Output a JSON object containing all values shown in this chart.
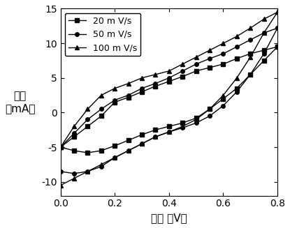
{
  "xlabel": "电压 （V）",
  "ylabel": "电流\n（mA）",
  "xlim": [
    0.0,
    0.8
  ],
  "ylim": [
    -12,
    15
  ],
  "xticks": [
    0.0,
    0.2,
    0.4,
    0.6,
    0.8
  ],
  "yticks": [
    -10,
    -5,
    0,
    5,
    10,
    15
  ],
  "background_color": "#ffffff",
  "legend_labels": [
    "20 m V/s",
    "50 m V/s",
    "100 m V/s"
  ],
  "scan_20_upper_x": [
    0.0,
    0.05,
    0.1,
    0.15,
    0.2,
    0.25,
    0.3,
    0.35,
    0.4,
    0.45,
    0.5,
    0.55,
    0.6,
    0.65,
    0.7,
    0.75,
    0.8
  ],
  "scan_20_upper_y": [
    -5.0,
    -3.5,
    -2.0,
    -0.5,
    1.5,
    2.2,
    3.0,
    3.8,
    4.5,
    5.2,
    6.0,
    6.5,
    7.0,
    7.8,
    8.5,
    9.0,
    9.5
  ],
  "scan_20_lower_x": [
    0.0,
    0.05,
    0.1,
    0.15,
    0.2,
    0.25,
    0.3,
    0.35,
    0.4,
    0.45,
    0.5,
    0.55,
    0.6,
    0.65,
    0.7,
    0.75,
    0.8
  ],
  "scan_20_lower_y": [
    -5.0,
    -5.5,
    -5.8,
    -5.5,
    -4.8,
    -4.0,
    -3.2,
    -2.5,
    -2.0,
    -1.5,
    -0.8,
    0.5,
    2.0,
    3.5,
    5.5,
    7.5,
    9.5
  ],
  "scan_50_upper_x": [
    0.0,
    0.05,
    0.1,
    0.15,
    0.2,
    0.25,
    0.3,
    0.35,
    0.4,
    0.45,
    0.5,
    0.55,
    0.6,
    0.65,
    0.7,
    0.75,
    0.8
  ],
  "scan_50_upper_y": [
    -5.0,
    -3.0,
    -1.0,
    0.5,
    1.8,
    2.5,
    3.5,
    4.2,
    5.0,
    6.0,
    7.0,
    7.8,
    8.5,
    9.5,
    10.5,
    11.5,
    12.2
  ],
  "scan_50_lower_x": [
    0.0,
    0.05,
    0.1,
    0.15,
    0.2,
    0.25,
    0.3,
    0.35,
    0.4,
    0.45,
    0.5,
    0.55,
    0.6,
    0.65,
    0.7,
    0.75,
    0.8
  ],
  "scan_50_lower_y": [
    -8.5,
    -8.8,
    -8.5,
    -7.8,
    -6.5,
    -5.5,
    -4.5,
    -3.5,
    -2.8,
    -2.2,
    -1.5,
    -0.5,
    1.0,
    3.0,
    5.5,
    8.5,
    12.2
  ],
  "scan_100_upper_x": [
    0.0,
    0.05,
    0.1,
    0.15,
    0.2,
    0.25,
    0.3,
    0.35,
    0.4,
    0.45,
    0.5,
    0.55,
    0.6,
    0.65,
    0.7,
    0.75,
    0.8
  ],
  "scan_100_upper_y": [
    -5.0,
    -2.0,
    0.5,
    2.5,
    3.5,
    4.2,
    5.0,
    5.5,
    6.0,
    7.0,
    8.0,
    9.0,
    10.0,
    11.0,
    12.2,
    13.5,
    14.5
  ],
  "scan_100_lower_x": [
    0.0,
    0.05,
    0.1,
    0.15,
    0.2,
    0.25,
    0.3,
    0.35,
    0.4,
    0.45,
    0.5,
    0.55,
    0.6,
    0.65,
    0.7,
    0.75,
    0.8
  ],
  "scan_100_lower_y": [
    -10.5,
    -9.5,
    -8.5,
    -7.5,
    -6.5,
    -5.5,
    -4.5,
    -3.5,
    -2.8,
    -2.0,
    -1.0,
    0.5,
    2.5,
    5.0,
    8.0,
    11.5,
    14.5
  ]
}
